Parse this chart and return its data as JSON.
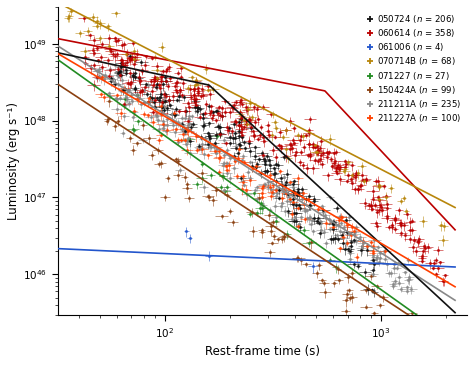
{
  "xlabel": "Rest-frame time (s)",
  "ylabel": "Luminosity (erg s⁻¹)",
  "xlim_log": [
    1.48,
    3.4
  ],
  "ylim": [
    3e+45,
    3e+49
  ],
  "legend_order": [
    "050724",
    "060614",
    "061006",
    "070714B",
    "071227",
    "150424A",
    "211211A",
    "211227A"
  ],
  "grbs": {
    "050724": {
      "color": "#111111",
      "n": 206,
      "scatter": {
        "t_min": 55,
        "t_max": 950,
        "L0": 4.5e+48,
        "t0": 55,
        "alpha1": 1.5,
        "tb": 220,
        "alpha2": 2.8
      },
      "curve": {
        "L0": 5.5e+48,
        "t0": 55,
        "alpha1": 0.6,
        "tb": 160,
        "alpha2": 2.6
      }
    },
    "060614": {
      "color": "#bb0000",
      "n": 358,
      "scatter": {
        "t_min": 42,
        "t_max": 2000,
        "L0": 9e+48,
        "t0": 42,
        "alpha1": 1.3,
        "tb": 700,
        "alpha2": 3.0
      },
      "curve": {
        "L0": 1e+49,
        "t0": 42,
        "alpha1": 0.55,
        "tb": 550,
        "alpha2": 3.0
      }
    },
    "061006": {
      "color": "#2255cc",
      "n": 4,
      "scatter": {
        "t_min": 90,
        "t_max": 550,
        "L0": 2e+46,
        "t0": 100,
        "alpha1": 0.35,
        "tb": 5000,
        "alpha2": 0.35
      },
      "curve": {
        "L0": 2.1e+46,
        "t0": 40,
        "alpha1": 0.13,
        "tb": 5000,
        "alpha2": 0.13
      }
    },
    "070714B": {
      "color": "#b8860b",
      "n": 68,
      "scatter": {
        "t_min": 35,
        "t_max": 2000,
        "L0": 2.5e+49,
        "t0": 35,
        "alpha1": 1.55,
        "tb": 5000,
        "alpha2": 1.55
      },
      "curve": {
        "L0": 3e+49,
        "t0": 35,
        "alpha1": 1.45,
        "tb": 5000,
        "alpha2": 1.45
      }
    },
    "071227": {
      "color": "#228B22",
      "n": 27,
      "scatter": {
        "t_min": 65,
        "t_max": 680,
        "L0": 1.3e+48,
        "t0": 65,
        "alpha1": 2.1,
        "tb": 5000,
        "alpha2": 2.1
      },
      "curve": {
        "L0": 1.5e+48,
        "t0": 65,
        "alpha1": 2.0,
        "tb": 5000,
        "alpha2": 2.0
      }
    },
    "150424A": {
      "color": "#8B4010",
      "n": 99,
      "scatter": {
        "t_min": 50,
        "t_max": 2000,
        "L0": 1.1e+48,
        "t0": 50,
        "alpha1": 1.95,
        "tb": 5000,
        "alpha2": 1.95
      },
      "curve": {
        "L0": 1.3e+48,
        "t0": 50,
        "alpha1": 1.85,
        "tb": 5000,
        "alpha2": 1.85
      }
    },
    "211211A": {
      "color": "#888888",
      "n": 235,
      "scatter": {
        "t_min": 48,
        "t_max": 1400,
        "L0": 4e+48,
        "t0": 48,
        "alpha1": 1.85,
        "tb": 5000,
        "alpha2": 1.85
      },
      "curve": {
        "L0": 4.5e+48,
        "t0": 48,
        "alpha1": 1.8,
        "tb": 5000,
        "alpha2": 1.8
      }
    },
    "211227A": {
      "color": "#ff4000",
      "n": 100,
      "scatter": {
        "t_min": 48,
        "t_max": 1100,
        "L0": 3.2e+48,
        "t0": 48,
        "alpha1": 1.7,
        "tb": 5000,
        "alpha2": 1.7
      },
      "curve": {
        "L0": 3.8e+48,
        "t0": 48,
        "alpha1": 1.65,
        "tb": 5000,
        "alpha2": 1.65
      }
    }
  },
  "plot_order": [
    "061006",
    "150424A",
    "071227",
    "211211A",
    "050724",
    "211227A",
    "060614",
    "070714B"
  ]
}
